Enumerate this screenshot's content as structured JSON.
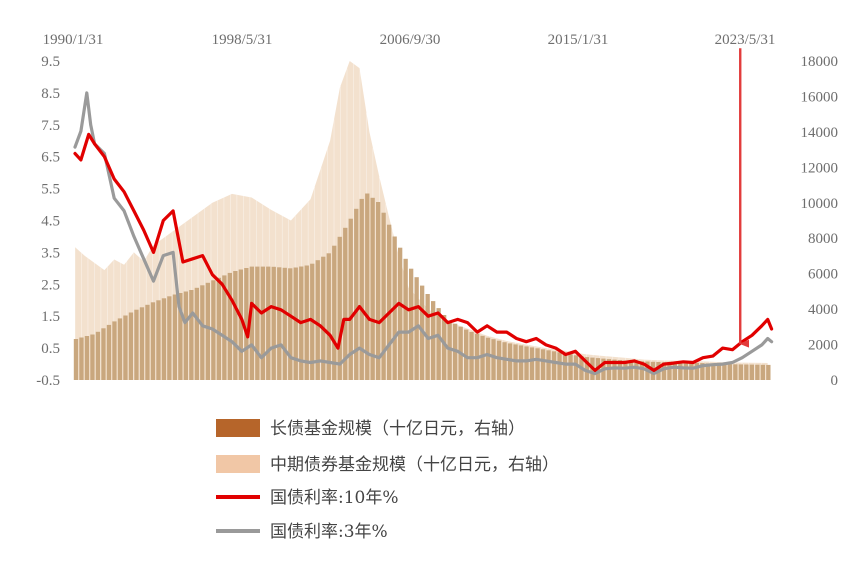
{
  "chart_data": {
    "type": "bar+line",
    "x_tick_labels": [
      "1990/1/31",
      "1998/5/31",
      "2006/9/30",
      "2015/1/31",
      "2023/5/31"
    ],
    "x_range": [
      "1990/01",
      "2025/06"
    ],
    "left_axis": {
      "ticks": [
        "9.5",
        "8.5",
        "7.5",
        "6.5",
        "5.5",
        "4.5",
        "3.5",
        "2.5",
        "1.5",
        "0.5",
        "-0.5"
      ],
      "range": [
        -0.5,
        9.5
      ]
    },
    "right_axis": {
      "ticks": [
        "18000",
        "16000",
        "14000",
        "12000",
        "10000",
        "8000",
        "6000",
        "4000",
        "2000",
        "0"
      ],
      "range": [
        0,
        18000
      ]
    },
    "grid": false,
    "legend_position": "bottom",
    "series": [
      {
        "name": "长债基金规模（十亿日元，右轴）",
        "kind": "bar",
        "axis": "right",
        "color": "#c9a77e",
        "points": [
          [
            1990.0,
            2300
          ],
          [
            1991.0,
            2600
          ],
          [
            1992.0,
            3300
          ],
          [
            1993.0,
            3900
          ],
          [
            1994.0,
            4400
          ],
          [
            1995.0,
            4800
          ],
          [
            1996.0,
            5100
          ],
          [
            1997.0,
            5600
          ],
          [
            1998.0,
            6100
          ],
          [
            1999.0,
            6400
          ],
          [
            2000.0,
            6400
          ],
          [
            2001.0,
            6300
          ],
          [
            2002.0,
            6500
          ],
          [
            2003.0,
            7200
          ],
          [
            2004.0,
            9000
          ],
          [
            2004.8,
            10600
          ],
          [
            2005.5,
            10000
          ],
          [
            2006.2,
            8300
          ],
          [
            2007.0,
            6500
          ],
          [
            2008.0,
            4800
          ],
          [
            2009.0,
            3400
          ],
          [
            2010.0,
            2800
          ],
          [
            2011.0,
            2400
          ],
          [
            2012.0,
            2100
          ],
          [
            2013.0,
            1900
          ],
          [
            2014.0,
            1700
          ],
          [
            2015.0,
            1500
          ],
          [
            2016.0,
            1300
          ],
          [
            2017.0,
            1200
          ],
          [
            2018.0,
            1100
          ],
          [
            2019.0,
            1050
          ],
          [
            2020.0,
            1000
          ],
          [
            2021.0,
            1000
          ],
          [
            2022.0,
            950
          ],
          [
            2023.0,
            900
          ],
          [
            2024.0,
            880
          ],
          [
            2025.3,
            850
          ]
        ]
      },
      {
        "name": "中期债券基金规模（十亿日元，右轴）",
        "kind": "area",
        "axis": "right",
        "color": "#f2dfcb",
        "points": [
          [
            1990.0,
            7500
          ],
          [
            1990.5,
            7000
          ],
          [
            1991.0,
            6600
          ],
          [
            1991.5,
            6200
          ],
          [
            1992.0,
            6800
          ],
          [
            1992.5,
            6500
          ],
          [
            1993.0,
            7200
          ],
          [
            1993.5,
            6700
          ],
          [
            1994.0,
            7600
          ],
          [
            1995.0,
            8400
          ],
          [
            1996.0,
            9200
          ],
          [
            1997.0,
            10000
          ],
          [
            1998.0,
            10500
          ],
          [
            1999.0,
            10300
          ],
          [
            2000.0,
            9600
          ],
          [
            2001.0,
            9000
          ],
          [
            2002.0,
            10200
          ],
          [
            2003.0,
            13500
          ],
          [
            2003.5,
            16500
          ],
          [
            2004.0,
            18000
          ],
          [
            2004.5,
            17600
          ],
          [
            2005.0,
            14000
          ],
          [
            2005.5,
            11500
          ],
          [
            2006.0,
            9200
          ],
          [
            2006.5,
            7000
          ],
          [
            2007.0,
            5200
          ],
          [
            2008.0,
            4000
          ],
          [
            2009.0,
            3300
          ],
          [
            2010.0,
            2900
          ],
          [
            2011.0,
            2500
          ],
          [
            2012.0,
            2200
          ],
          [
            2013.0,
            2000
          ],
          [
            2014.0,
            1800
          ],
          [
            2015.0,
            1650
          ],
          [
            2016.0,
            1450
          ],
          [
            2017.0,
            1350
          ],
          [
            2018.0,
            1250
          ],
          [
            2019.0,
            1150
          ],
          [
            2020.0,
            1100
          ],
          [
            2021.0,
            1080
          ],
          [
            2022.0,
            1050
          ],
          [
            2023.0,
            1000
          ],
          [
            2024.0,
            980
          ],
          [
            2025.3,
            960
          ]
        ]
      },
      {
        "name": "国债利率:10年%",
        "kind": "line",
        "axis": "left",
        "color": "#e10000",
        "points": [
          [
            1990.0,
            6.6
          ],
          [
            1990.3,
            6.4
          ],
          [
            1990.7,
            7.2
          ],
          [
            1991.0,
            6.9
          ],
          [
            1991.5,
            6.5
          ],
          [
            1992.0,
            5.8
          ],
          [
            1992.5,
            5.4
          ],
          [
            1993.0,
            4.8
          ],
          [
            1993.5,
            4.2
          ],
          [
            1994.0,
            3.5
          ],
          [
            1994.5,
            4.5
          ],
          [
            1995.0,
            4.8
          ],
          [
            1995.5,
            3.2
          ],
          [
            1996.0,
            3.3
          ],
          [
            1996.5,
            3.4
          ],
          [
            1997.0,
            2.8
          ],
          [
            1997.5,
            2.5
          ],
          [
            1998.0,
            2.0
          ],
          [
            1998.5,
            1.4
          ],
          [
            1998.8,
            0.85
          ],
          [
            1999.0,
            1.9
          ],
          [
            1999.5,
            1.6
          ],
          [
            2000.0,
            1.8
          ],
          [
            2000.5,
            1.7
          ],
          [
            2001.0,
            1.5
          ],
          [
            2001.5,
            1.3
          ],
          [
            2002.0,
            1.4
          ],
          [
            2002.5,
            1.2
          ],
          [
            2003.0,
            0.9
          ],
          [
            2003.4,
            0.5
          ],
          [
            2003.7,
            1.4
          ],
          [
            2004.0,
            1.4
          ],
          [
            2004.5,
            1.8
          ],
          [
            2005.0,
            1.4
          ],
          [
            2005.5,
            1.3
          ],
          [
            2006.0,
            1.6
          ],
          [
            2006.5,
            1.9
          ],
          [
            2007.0,
            1.7
          ],
          [
            2007.5,
            1.8
          ],
          [
            2008.0,
            1.5
          ],
          [
            2008.5,
            1.6
          ],
          [
            2009.0,
            1.3
          ],
          [
            2009.5,
            1.4
          ],
          [
            2010.0,
            1.3
          ],
          [
            2010.5,
            1.0
          ],
          [
            2011.0,
            1.2
          ],
          [
            2011.5,
            1.0
          ],
          [
            2012.0,
            1.0
          ],
          [
            2012.5,
            0.8
          ],
          [
            2013.0,
            0.7
          ],
          [
            2013.5,
            0.8
          ],
          [
            2014.0,
            0.6
          ],
          [
            2014.5,
            0.5
          ],
          [
            2015.0,
            0.3
          ],
          [
            2015.5,
            0.4
          ],
          [
            2016.0,
            0.1
          ],
          [
            2016.5,
            -0.2
          ],
          [
            2017.0,
            0.05
          ],
          [
            2017.5,
            0.05
          ],
          [
            2018.0,
            0.05
          ],
          [
            2018.5,
            0.1
          ],
          [
            2019.0,
            0.0
          ],
          [
            2019.5,
            -0.2
          ],
          [
            2020.0,
            0.0
          ],
          [
            2020.5,
            0.03
          ],
          [
            2021.0,
            0.07
          ],
          [
            2021.5,
            0.05
          ],
          [
            2022.0,
            0.2
          ],
          [
            2022.5,
            0.25
          ],
          [
            2023.0,
            0.5
          ],
          [
            2023.5,
            0.45
          ],
          [
            2024.0,
            0.7
          ],
          [
            2024.5,
            0.9
          ],
          [
            2025.0,
            1.2
          ],
          [
            2025.3,
            1.4
          ],
          [
            2025.5,
            1.1
          ]
        ]
      },
      {
        "name": "国债利率:3年%",
        "kind": "line",
        "axis": "left",
        "color": "#9a9a9a",
        "points": [
          [
            1990.0,
            6.8
          ],
          [
            1990.3,
            7.3
          ],
          [
            1990.6,
            8.5
          ],
          [
            1990.8,
            7.5
          ],
          [
            1991.0,
            6.9
          ],
          [
            1991.5,
            6.6
          ],
          [
            1992.0,
            5.2
          ],
          [
            1992.5,
            4.8
          ],
          [
            1993.0,
            4.0
          ],
          [
            1993.5,
            3.3
          ],
          [
            1994.0,
            2.6
          ],
          [
            1994.5,
            3.4
          ],
          [
            1995.0,
            3.5
          ],
          [
            1995.3,
            1.8
          ],
          [
            1995.6,
            1.3
          ],
          [
            1996.0,
            1.6
          ],
          [
            1996.5,
            1.2
          ],
          [
            1997.0,
            1.1
          ],
          [
            1997.5,
            0.9
          ],
          [
            1998.0,
            0.7
          ],
          [
            1998.5,
            0.4
          ],
          [
            1999.0,
            0.6
          ],
          [
            1999.5,
            0.2
          ],
          [
            2000.0,
            0.5
          ],
          [
            2000.5,
            0.6
          ],
          [
            2001.0,
            0.2
          ],
          [
            2001.5,
            0.1
          ],
          [
            2002.0,
            0.05
          ],
          [
            2002.5,
            0.1
          ],
          [
            2003.0,
            0.05
          ],
          [
            2003.5,
            0.0
          ],
          [
            2004.0,
            0.3
          ],
          [
            2004.5,
            0.5
          ],
          [
            2005.0,
            0.3
          ],
          [
            2005.5,
            0.2
          ],
          [
            2006.0,
            0.6
          ],
          [
            2006.5,
            1.0
          ],
          [
            2007.0,
            1.0
          ],
          [
            2007.5,
            1.2
          ],
          [
            2008.0,
            0.8
          ],
          [
            2008.5,
            0.9
          ],
          [
            2009.0,
            0.5
          ],
          [
            2009.5,
            0.4
          ],
          [
            2010.0,
            0.2
          ],
          [
            2010.5,
            0.2
          ],
          [
            2011.0,
            0.3
          ],
          [
            2011.5,
            0.2
          ],
          [
            2012.0,
            0.15
          ],
          [
            2012.5,
            0.1
          ],
          [
            2013.0,
            0.1
          ],
          [
            2013.5,
            0.15
          ],
          [
            2014.0,
            0.1
          ],
          [
            2014.5,
            0.05
          ],
          [
            2015.0,
            0.0
          ],
          [
            2015.5,
            0.0
          ],
          [
            2016.0,
            -0.2
          ],
          [
            2016.5,
            -0.3
          ],
          [
            2017.0,
            -0.15
          ],
          [
            2017.5,
            -0.12
          ],
          [
            2018.0,
            -0.13
          ],
          [
            2018.5,
            -0.1
          ],
          [
            2019.0,
            -0.15
          ],
          [
            2019.5,
            -0.3
          ],
          [
            2020.0,
            -0.15
          ],
          [
            2020.5,
            -0.1
          ],
          [
            2021.0,
            -0.12
          ],
          [
            2021.5,
            -0.13
          ],
          [
            2022.0,
            -0.05
          ],
          [
            2022.5,
            -0.02
          ],
          [
            2023.0,
            0.0
          ],
          [
            2023.5,
            0.05
          ],
          [
            2024.0,
            0.2
          ],
          [
            2024.5,
            0.4
          ],
          [
            2025.0,
            0.6
          ],
          [
            2025.3,
            0.8
          ],
          [
            2025.5,
            0.7
          ]
        ]
      }
    ],
    "annotation": {
      "kind": "arrow",
      "color": "#e23c3c",
      "x": 2023.9,
      "from_left_value": 9.9,
      "to_left_value": 0.45
    }
  }
}
